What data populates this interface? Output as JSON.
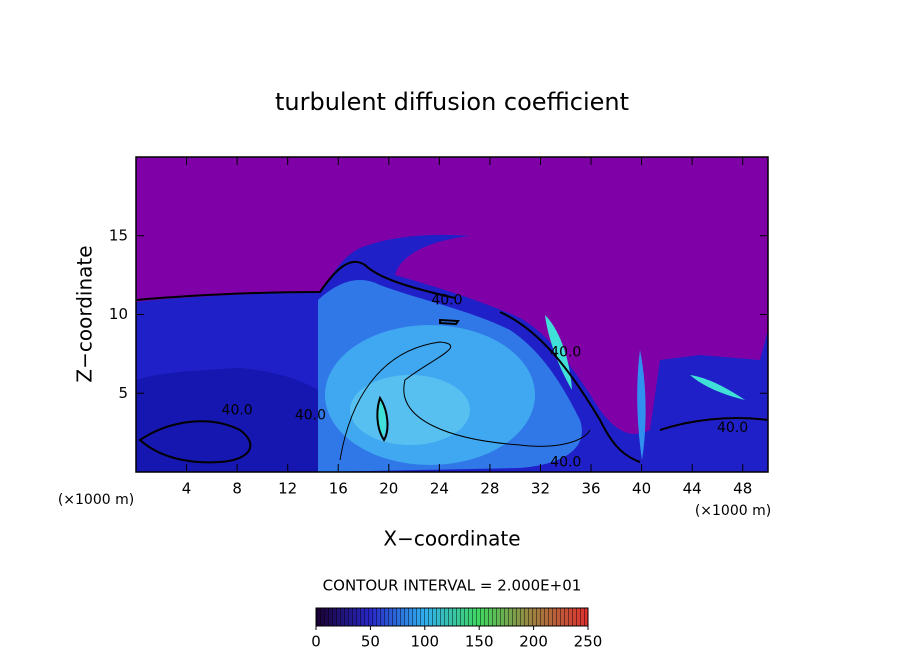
{
  "chart_data": {
    "type": "contour",
    "title": "turbulent diffusion coefficient",
    "x_label": "X−coordinate",
    "y_label": "Z−coordinate",
    "x_unit": "(×1000 m)",
    "y_unit": "(×1000 m)",
    "xlim": [
      0,
      50
    ],
    "ylim": [
      0,
      20
    ],
    "xticks": [
      4,
      8,
      12,
      16,
      20,
      24,
      28,
      32,
      36,
      40,
      44,
      48
    ],
    "yticks": [
      5,
      10,
      15
    ],
    "contour_interval_label": "CONTOUR INTERVAL = 2.000E+01",
    "clim": [
      0,
      250
    ],
    "colorbar_ticks": [
      0,
      50,
      100,
      150,
      200,
      250
    ],
    "contour_labels": [
      {
        "x": 24.6,
        "y": 10.9,
        "label": "40.0"
      },
      {
        "x": 34.0,
        "y": 7.6,
        "label": "40.0"
      },
      {
        "x": 8.0,
        "y": 3.9,
        "label": "40.0"
      },
      {
        "x": 13.8,
        "y": 3.6,
        "label": "40.0"
      },
      {
        "x": 34.0,
        "y": 0.6,
        "label": "40.0"
      },
      {
        "x": 47.2,
        "y": 2.8,
        "label": "40.0"
      }
    ]
  }
}
